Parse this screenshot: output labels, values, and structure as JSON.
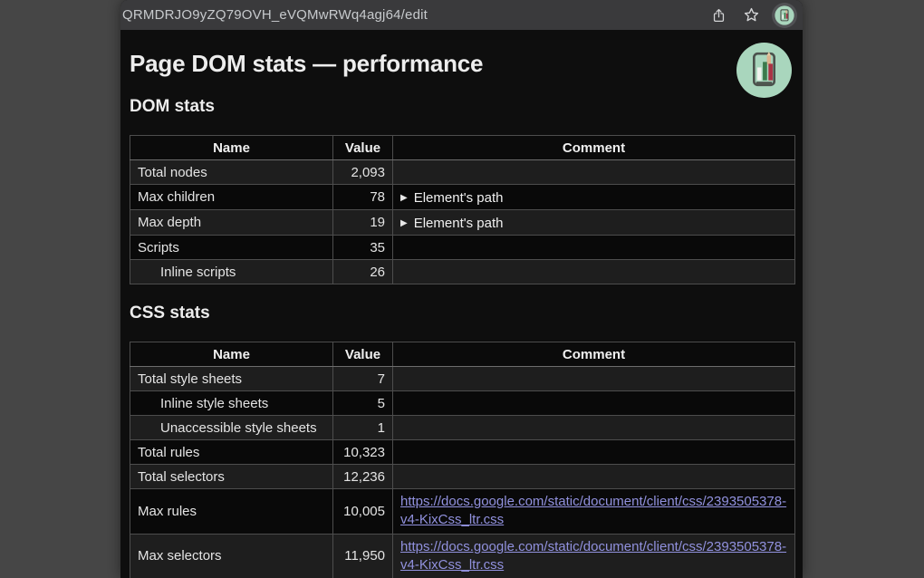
{
  "toolbar": {
    "url": "QRMDRJO9yZQ79OVH_eVQMwRWq4agj64/edit"
  },
  "page": {
    "title": "Page DOM stats — performance",
    "sections": [
      {
        "heading": "DOM stats",
        "columns": [
          "Name",
          "Value",
          "Comment"
        ],
        "rows": [
          {
            "name": "Total nodes",
            "value": "2,093",
            "indent": false,
            "comment": {
              "type": "empty"
            }
          },
          {
            "name": "Max children",
            "value": "78",
            "indent": false,
            "comment": {
              "type": "disclosure",
              "label": "Element's path"
            }
          },
          {
            "name": "Max depth",
            "value": "19",
            "indent": false,
            "comment": {
              "type": "disclosure",
              "label": "Element's path"
            }
          },
          {
            "name": "Scripts",
            "value": "35",
            "indent": false,
            "comment": {
              "type": "empty"
            }
          },
          {
            "name": "Inline scripts",
            "value": "26",
            "indent": true,
            "comment": {
              "type": "empty"
            }
          }
        ]
      },
      {
        "heading": "CSS stats",
        "columns": [
          "Name",
          "Value",
          "Comment"
        ],
        "rows": [
          {
            "name": "Total style sheets",
            "value": "7",
            "indent": false,
            "comment": {
              "type": "empty"
            }
          },
          {
            "name": "Inline style sheets",
            "value": "5",
            "indent": true,
            "comment": {
              "type": "empty"
            }
          },
          {
            "name": "Unaccessible style sheets",
            "value": "1",
            "indent": true,
            "comment": {
              "type": "empty"
            }
          },
          {
            "name": "Total rules",
            "value": "10,323",
            "indent": false,
            "comment": {
              "type": "empty"
            }
          },
          {
            "name": "Total selectors",
            "value": "12,236",
            "indent": false,
            "comment": {
              "type": "empty"
            }
          },
          {
            "name": "Max rules",
            "value": "10,005",
            "indent": false,
            "comment": {
              "type": "link",
              "text": "https://docs.google.com/static/document/client/css/2393505378-v4-KixCss_ltr.css"
            }
          },
          {
            "name": "Max selectors",
            "value": "11,950",
            "indent": false,
            "comment": {
              "type": "link",
              "text": "https://docs.google.com/static/document/client/css/2393505378-v4-KixCss_ltr.css"
            }
          }
        ]
      }
    ]
  },
  "icons": {
    "share": "share-icon",
    "star": "bookmark-star-icon",
    "extension": "dom-stats-extension-icon",
    "disclosure_triangle": "▶"
  },
  "colors": {
    "desktop_bg": "#464646",
    "toolbar_bg": "#3a3a3c",
    "page_bg": "#0e0e0e",
    "row_odd": "#1e1e1e",
    "row_even": "#090909",
    "link": "#9191de",
    "logo_mint": "#a9d6bd",
    "logo_bar_green": "#3c7a4c",
    "logo_bar_red": "#aa3345"
  }
}
